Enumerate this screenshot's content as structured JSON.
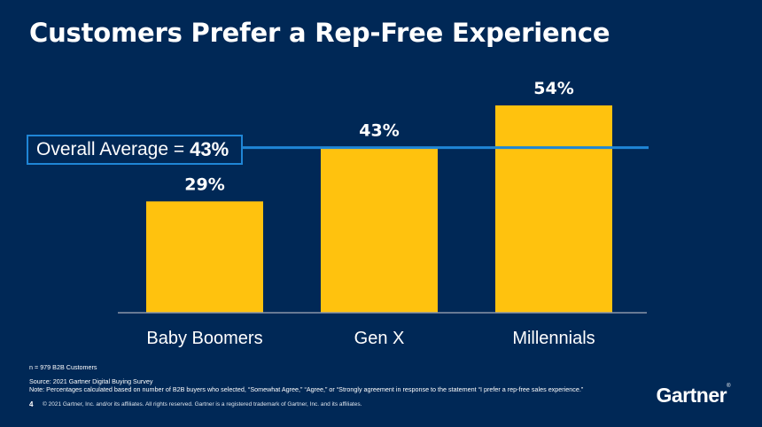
{
  "slide": {
    "title": "Customers Prefer a Rep-Free Experience",
    "page_number": "4",
    "copyright": "© 2021 Gartner, Inc. and/or its affiliates. All rights reserved. Gartner is a registered trademark of Gartner, Inc. and its affiliates.",
    "logo_text": "Gartner",
    "logo_mark": "®"
  },
  "footnotes": {
    "sample": "n = 979 B2B Customers",
    "source": "Source: 2021 Gartner Digital Buying Survey",
    "note": "Note: Percentages calculated based on number of B2B buyers who selected, “Somewhat Agree,” “Agree,” or “Strongly agreement in response to the statement “I prefer a rep-free sales experience.”"
  },
  "chart_data": {
    "type": "bar",
    "title": "",
    "xlabel": "",
    "ylabel": "",
    "categories": [
      "Baby Boomers",
      "Gen X",
      "Millennials"
    ],
    "values": [
      29,
      43,
      54
    ],
    "data_labels": [
      "29%",
      "43%",
      "54%"
    ],
    "ylim": [
      0,
      54
    ],
    "grid": false,
    "reference_line": {
      "value": 43,
      "label": "Overall Average =",
      "value_label": "43%"
    }
  },
  "colors": {
    "background": "#002856",
    "bar": "#FFC20E",
    "reference_line": "#1F86D6",
    "baseline": "#8A96A8"
  }
}
